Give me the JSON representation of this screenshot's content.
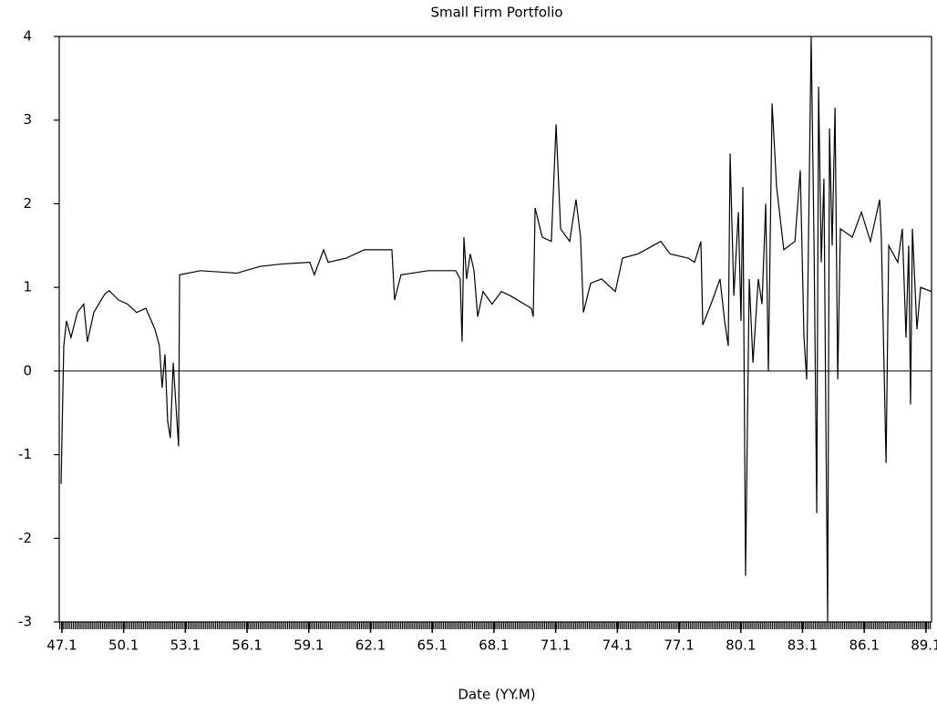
{
  "chart_data": {
    "type": "line",
    "title": "Small Firm Portfolio",
    "x_label": "Date (YY.M)",
    "xlim": [
      46.97,
      89.37
    ],
    "ylim": [
      -3,
      4
    ],
    "xticks": [
      47.1,
      50.1,
      53.1,
      56.1,
      59.1,
      62.1,
      65.1,
      68.1,
      71.1,
      74.1,
      77.1,
      80.1,
      83.1,
      86.1,
      89.1
    ],
    "yticks": [
      -3,
      -2,
      -1,
      0,
      1,
      2,
      3,
      4
    ],
    "color": "#000000",
    "x": [
      47.06,
      47.19,
      47.32,
      47.54,
      47.85,
      48.16,
      48.34,
      48.65,
      49.18,
      49.4,
      49.85,
      50.29,
      50.73,
      51.18,
      51.62,
      51.84,
      51.97,
      52.11,
      52.24,
      52.37,
      52.51,
      52.64,
      52.77,
      52.82,
      53.83,
      55.61,
      56.72,
      57.82,
      59.15,
      59.37,
      59.82,
      60.04,
      60.92,
      61.81,
      63.14,
      63.27,
      63.58,
      64.91,
      66.24,
      66.46,
      66.55,
      66.64,
      66.77,
      66.95,
      67.13,
      67.31,
      67.57,
      68.01,
      68.46,
      68.9,
      69.92,
      70.01,
      70.1,
      70.45,
      70.89,
      71.12,
      71.34,
      71.78,
      72.09,
      72.31,
      72.45,
      72.8,
      73.33,
      74.0,
      74.35,
      75.1,
      76.21,
      76.66,
      77.54,
      77.85,
      78.16,
      78.25,
      78.65,
      79.09,
      79.31,
      79.49,
      79.58,
      79.76,
      79.98,
      80.11,
      80.2,
      80.33,
      80.51,
      80.69,
      80.95,
      81.13,
      81.31,
      81.44,
      81.62,
      81.84,
      82.19,
      82.73,
      82.99,
      83.17,
      83.3,
      83.52,
      83.66,
      83.79,
      83.88,
      84.01,
      84.14,
      84.23,
      84.32,
      84.41,
      84.54,
      84.68,
      84.81,
      84.94,
      85.52,
      85.96,
      86.4,
      86.85,
      86.93,
      87.16,
      87.29,
      87.73,
      87.95,
      88.13,
      88.26,
      88.35,
      88.44,
      88.66,
      88.84,
      89.37
    ],
    "values": [
      -1.35,
      0.3,
      0.6,
      0.4,
      0.7,
      0.8,
      0.35,
      0.7,
      0.92,
      0.96,
      0.85,
      0.8,
      0.7,
      0.75,
      0.5,
      0.3,
      -0.2,
      0.2,
      -0.6,
      -0.8,
      0.1,
      -0.4,
      -0.9,
      1.15,
      1.2,
      1.17,
      1.25,
      1.28,
      1.3,
      1.15,
      1.45,
      1.3,
      1.35,
      1.45,
      1.45,
      0.85,
      1.15,
      1.2,
      1.2,
      1.1,
      0.35,
      1.6,
      1.1,
      1.4,
      1.2,
      0.65,
      0.95,
      0.8,
      0.95,
      0.9,
      0.75,
      0.65,
      1.95,
      1.6,
      1.55,
      2.95,
      1.7,
      1.55,
      2.05,
      1.6,
      0.7,
      1.05,
      1.1,
      0.95,
      1.35,
      1.4,
      1.55,
      1.4,
      1.35,
      1.3,
      1.55,
      0.55,
      0.8,
      1.1,
      0.6,
      0.3,
      2.6,
      0.9,
      1.9,
      0.6,
      2.2,
      -2.45,
      1.1,
      0.1,
      1.1,
      0.8,
      2.0,
      0.0,
      3.2,
      2.2,
      1.45,
      1.55,
      2.4,
      0.4,
      -0.1,
      4.0,
      1.5,
      -1.7,
      3.4,
      1.3,
      2.3,
      -0.5,
      -3.0,
      2.9,
      1.5,
      3.15,
      -0.1,
      1.7,
      1.6,
      1.9,
      1.55,
      2.05,
      1.6,
      -1.1,
      1.5,
      1.3,
      1.7,
      0.4,
      1.5,
      -0.4,
      1.7,
      0.5,
      1.0,
      0.95
    ]
  }
}
